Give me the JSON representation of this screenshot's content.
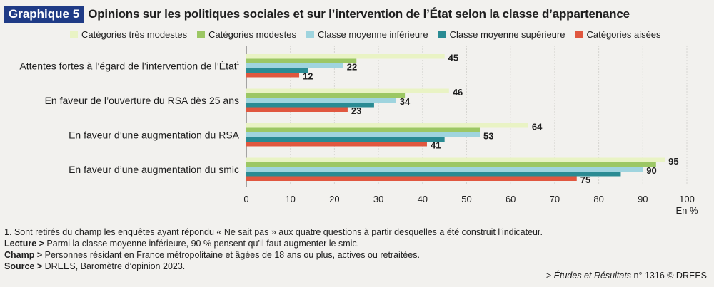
{
  "header": {
    "badge": "Graphique 5",
    "title": "Opinions sur les politiques sociales et sur l’intervention de l’État selon la classe d’appartenance"
  },
  "chart_data": {
    "type": "bar",
    "orientation": "horizontal",
    "categories": [
      "Attentes fortes à l’égard de l’intervention de l’État¹",
      "En faveur de l’ouverture du RSA dès 25 ans",
      "En faveur d’une augmentation du RSA",
      "En faveur d’une augmentation du smic"
    ],
    "series": [
      {
        "name": "Catégories très modestes",
        "color": "#e9f3c4",
        "values": [
          45,
          46,
          64,
          95
        ]
      },
      {
        "name": "Catégories modestes",
        "color": "#9cc764",
        "values": [
          25,
          36,
          53,
          93
        ]
      },
      {
        "name": "Classe moyenne inférieure",
        "color": "#9fd4de",
        "values": [
          22,
          34,
          53,
          90
        ]
      },
      {
        "name": "Classe moyenne supérieure",
        "color": "#2a8b93",
        "values": [
          14,
          29,
          45,
          85
        ]
      },
      {
        "name": "Catégories aisées",
        "color": "#e0573f",
        "values": [
          12,
          23,
          41,
          75
        ]
      }
    ],
    "labeled_series": [
      0,
      2,
      4
    ],
    "xlim": [
      0,
      100
    ],
    "xticks": [
      0,
      10,
      20,
      30,
      40,
      50,
      60,
      70,
      80,
      90,
      100
    ],
    "xlabel": "En %"
  },
  "notes": {
    "footnote": "1. Sont retirés du champ les enquêtes ayant répondu « Ne sait pas » aux quatre questions à partir desquelles a été construit l’indicateur.",
    "lecture_label": "Lecture >",
    "lecture_text": " Parmi la classe moyenne inférieure, 90 % pensent qu’il faut augmenter le smic.",
    "champ_label": "Champ >",
    "champ_text": " Personnes résidant en France métropolitaine et âgées de 18 ans ou plus, actives ou retraitées.",
    "source_label": "Source >",
    "source_text": " DREES, Baromètre d’opinion 2023."
  },
  "credit": {
    "prefix": "> ",
    "publication": "Études et Résultats",
    "suffix": " n° 1316 © DREES"
  }
}
